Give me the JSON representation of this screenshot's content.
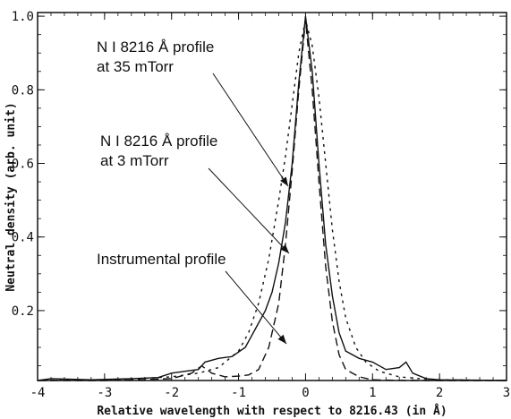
{
  "chart_data": {
    "type": "line",
    "title": "",
    "xlabel": "Relative wavelength with respect to 8216.43 (in Å)",
    "ylabel": "Neutral density (arb. unit)",
    "xlim": [
      -4,
      3
    ],
    "ylim": [
      0.01,
      1.01
    ],
    "xticks": [
      -4,
      -3,
      -2,
      -1,
      0,
      1,
      2,
      3
    ],
    "xtick_labels": [
      "-4",
      "-3",
      "-2",
      "-1",
      "0",
      "1",
      "2",
      "3"
    ],
    "yticks": [
      0.2,
      0.4,
      0.6,
      0.8,
      1.0
    ],
    "ytick_labels": [
      "0.2",
      "0.4",
      "0.6",
      "0.8",
      "1.0"
    ],
    "grid": false,
    "series": [
      {
        "name": "N I 8216 Å profile at 35 mTorr",
        "style": "dotted",
        "x": [
          -4.0,
          -3.0,
          -2.5,
          -2.0,
          -1.6,
          -1.3,
          -1.0,
          -0.85,
          -0.7,
          -0.55,
          -0.4,
          -0.3,
          -0.2,
          -0.1,
          0.0,
          0.1,
          0.2,
          0.3,
          0.4,
          0.5,
          0.6,
          0.75,
          0.9,
          1.1,
          1.4,
          1.7,
          2.0,
          2.5,
          3.0
        ],
        "y": [
          0.01,
          0.012,
          0.015,
          0.02,
          0.03,
          0.045,
          0.09,
          0.14,
          0.22,
          0.34,
          0.5,
          0.62,
          0.76,
          0.9,
          0.99,
          0.92,
          0.78,
          0.6,
          0.42,
          0.28,
          0.18,
          0.1,
          0.06,
          0.035,
          0.02,
          0.015,
          0.012,
          0.011,
          0.01
        ]
      },
      {
        "name": "N I 8216 Å profile at 3 mTorr",
        "style": "solid",
        "x": [
          -4.0,
          -3.8,
          -3.2,
          -2.6,
          -2.2,
          -2.0,
          -1.8,
          -1.6,
          -1.5,
          -1.3,
          -1.1,
          -0.9,
          -0.75,
          -0.6,
          -0.5,
          -0.4,
          -0.3,
          -0.2,
          -0.1,
          0.0,
          0.1,
          0.2,
          0.3,
          0.4,
          0.5,
          0.6,
          0.8,
          1.0,
          1.2,
          1.4,
          1.5,
          1.6,
          1.8,
          2.0,
          2.5,
          3.0
        ],
        "y": [
          0.01,
          0.015,
          0.012,
          0.015,
          0.018,
          0.03,
          0.035,
          0.04,
          0.06,
          0.07,
          0.075,
          0.1,
          0.15,
          0.2,
          0.25,
          0.33,
          0.44,
          0.6,
          0.82,
          1.0,
          0.85,
          0.6,
          0.38,
          0.24,
          0.14,
          0.09,
          0.07,
          0.06,
          0.04,
          0.045,
          0.06,
          0.03,
          0.015,
          0.012,
          0.011,
          0.01
        ]
      },
      {
        "name": "Instrumental profile",
        "style": "dashed",
        "x": [
          -4.0,
          -3.0,
          -2.5,
          -2.0,
          -1.7,
          -1.55,
          -1.4,
          -1.2,
          -1.0,
          -0.85,
          -0.7,
          -0.55,
          -0.4,
          -0.3,
          -0.2,
          -0.1,
          0.0,
          0.1,
          0.2,
          0.3,
          0.4,
          0.5,
          0.6,
          0.8,
          1.0,
          1.2,
          1.5,
          2.0,
          3.0
        ],
        "y": [
          0.01,
          0.01,
          0.012,
          0.015,
          0.03,
          0.05,
          0.03,
          0.02,
          0.022,
          0.025,
          0.04,
          0.1,
          0.22,
          0.38,
          0.58,
          0.8,
          0.99,
          0.8,
          0.55,
          0.32,
          0.17,
          0.08,
          0.04,
          0.02,
          0.012,
          0.011,
          0.01,
          0.01,
          0.01
        ]
      }
    ],
    "annotations": [
      {
        "lines": [
          "N I 8216 Å profile",
          "at 35 mTorr"
        ],
        "target": "N I 8216 Å profile at 35 mTorr"
      },
      {
        "lines": [
          "N I 8216 Å profile",
          "at 3 mTorr"
        ],
        "target": "N I 8216 Å profile at 3 mTorr"
      },
      {
        "lines": [
          "Instrumental profile"
        ],
        "target": "Instrumental profile"
      }
    ]
  }
}
